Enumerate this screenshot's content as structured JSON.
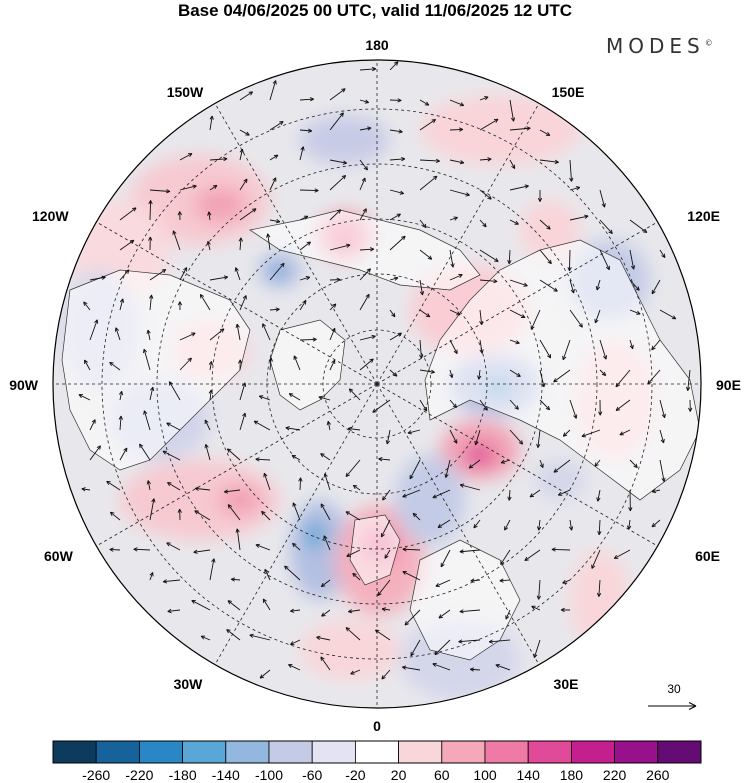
{
  "title": "Base 04/06/2025 00 UTC, valid 11/06/2025 12 UTC",
  "brand": "MODES",
  "brand_mark": "©",
  "longitude_labels": [
    "180",
    "150E",
    "120E",
    "90E",
    "60E",
    "30E",
    "0",
    "30W",
    "60W",
    "90W",
    "120W",
    "150W"
  ],
  "reference_vector": {
    "label": "30"
  },
  "colorbar": {
    "ticks": [
      "-260",
      "-220",
      "-180",
      "-140",
      "-100",
      "-60",
      "-20",
      "20",
      "60",
      "100",
      "140",
      "180",
      "220",
      "260"
    ],
    "colors": [
      "#0c3b5e",
      "#16629a",
      "#2a86c4",
      "#5aa6d6",
      "#93b7de",
      "#c3cbe6",
      "#e4e3f1",
      "#ffffff",
      "#f9d6d9",
      "#f5a9b8",
      "#ef7aa6",
      "#e04a98",
      "#c31f8e",
      "#98118a",
      "#650c74"
    ]
  },
  "map": {
    "projection": "north-polar-stereographic",
    "gridlines": "dashed"
  }
}
